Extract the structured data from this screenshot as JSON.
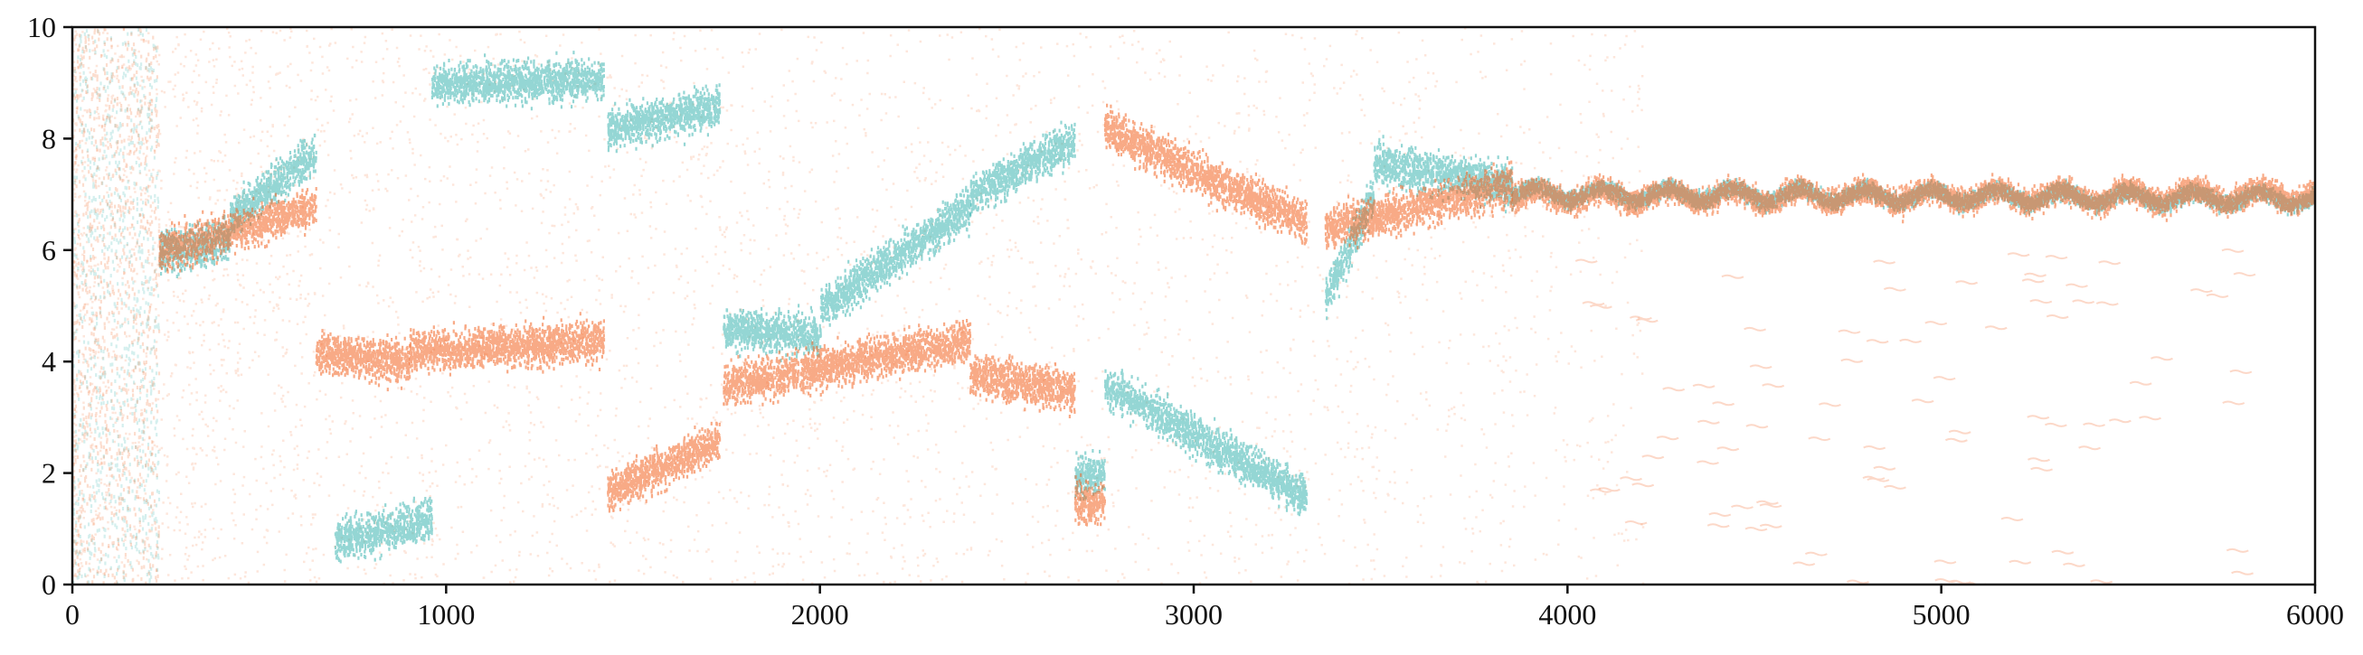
{
  "chart_data": {
    "type": "scatter",
    "title": "",
    "xlabel": "",
    "ylabel": "",
    "xlim": [
      0,
      6000
    ],
    "ylim": [
      0,
      10
    ],
    "xticks": [
      "0",
      "1000",
      "2000",
      "3000",
      "4000",
      "5000",
      "6000"
    ],
    "yticks": [
      "0",
      "2",
      "4",
      "6",
      "8",
      "10"
    ],
    "grid": false,
    "legend": "none",
    "colors": {
      "series_a": "#f26522",
      "series_b": "#3cb4b0",
      "overlap": "#3e6b5e"
    },
    "series": [
      {
        "color": "#3cb4b0",
        "segments": [
          {
            "x": [
              0,
              230
            ],
            "y": [
              0,
              10
            ],
            "spread": "wide"
          },
          {
            "x": [
              230,
              420
            ],
            "y": [
              6.0,
              6.2
            ]
          },
          {
            "x": [
              420,
              650
            ],
            "y": [
              6.6,
              7.8
            ]
          },
          {
            "x": [
              700,
              960
            ],
            "y": [
              0.8,
              1.2
            ]
          },
          {
            "x": [
              960,
              1420
            ],
            "y": [
              9.0,
              9.1
            ]
          },
          {
            "x": [
              1430,
              1730
            ],
            "y": [
              8.2,
              8.6
            ]
          },
          {
            "x": [
              1740,
              2000
            ],
            "y": [
              4.6,
              4.5
            ]
          },
          {
            "x": [
              2000,
              2400
            ],
            "y": [
              5.0,
              6.8
            ]
          },
          {
            "x": [
              2400,
              2680
            ],
            "y": [
              7.0,
              8.0
            ]
          },
          {
            "x": [
              2680,
              2760
            ],
            "y": [
              2.0,
              2.0
            ]
          },
          {
            "x": [
              2760,
              3300
            ],
            "y": [
              3.6,
              1.6
            ]
          },
          {
            "x": [
              3350,
              3480
            ],
            "y": [
              5.2,
              7.0
            ]
          },
          {
            "x": [
              3480,
              3850
            ],
            "y": [
              7.6,
              7.2
            ]
          },
          {
            "x": [
              3850,
              6000
            ],
            "y": [
              7.05,
              6.95
            ]
          }
        ]
      },
      {
        "color": "#f26522",
        "segments": [
          {
            "x": [
              0,
              230
            ],
            "y": [
              0,
              10
            ],
            "spread": "wide"
          },
          {
            "x": [
              230,
              650
            ],
            "y": [
              6.0,
              6.8
            ]
          },
          {
            "x": [
              650,
              900
            ],
            "y": [
              4.2,
              4.0
            ]
          },
          {
            "x": [
              900,
              1420
            ],
            "y": [
              4.2,
              4.4
            ]
          },
          {
            "x": [
              1430,
              1730
            ],
            "y": [
              1.7,
              2.6
            ]
          },
          {
            "x": [
              1740,
              2400
            ],
            "y": [
              3.6,
              4.4
            ]
          },
          {
            "x": [
              2400,
              2680
            ],
            "y": [
              3.8,
              3.5
            ]
          },
          {
            "x": [
              2680,
              2760
            ],
            "y": [
              1.5,
              1.5
            ]
          },
          {
            "x": [
              2760,
              3300
            ],
            "y": [
              8.2,
              6.5
            ]
          },
          {
            "x": [
              3350,
              3850
            ],
            "y": [
              6.4,
              7.2
            ]
          },
          {
            "x": [
              3850,
              6000
            ],
            "y": [
              7.0,
              7.0
            ]
          }
        ]
      }
    ]
  }
}
